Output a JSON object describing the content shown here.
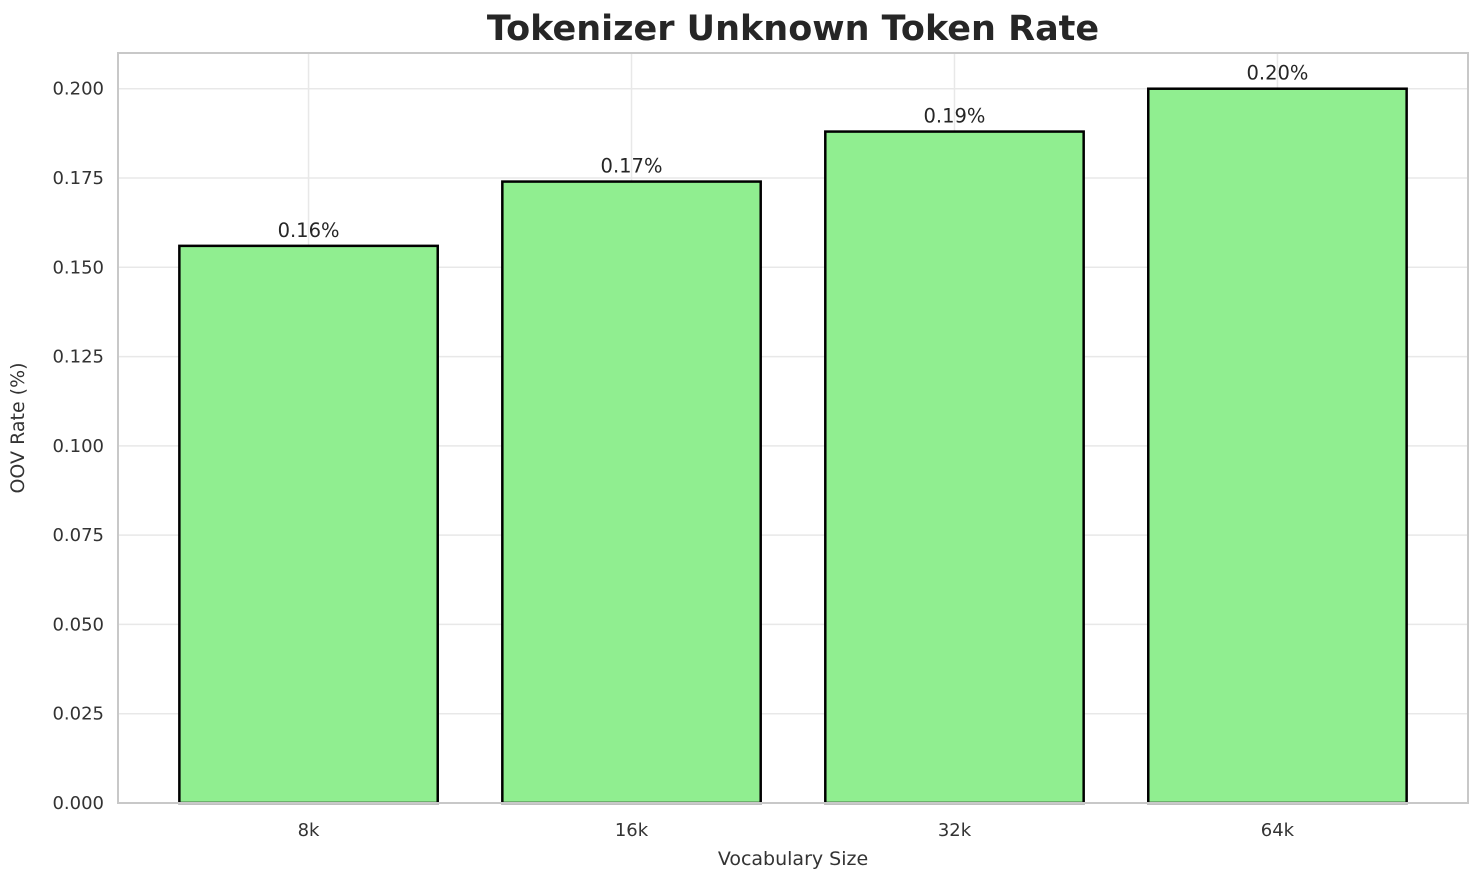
{
  "chart_data": {
    "type": "bar",
    "title": "Tokenizer Unknown Token Rate",
    "xlabel": "Vocabulary Size",
    "ylabel": "OOV Rate (%)",
    "categories": [
      "8k",
      "16k",
      "32k",
      "64k"
    ],
    "values": [
      0.156,
      0.174,
      0.188,
      0.2
    ],
    "value_labels": [
      "0.16%",
      "0.17%",
      "0.19%",
      "0.20%"
    ],
    "yticks": [
      "0.000",
      "0.025",
      "0.050",
      "0.075",
      "0.100",
      "0.125",
      "0.150",
      "0.175",
      "0.200"
    ],
    "ylim": [
      0,
      0.21
    ],
    "xlim": [
      -0.59,
      3.59
    ],
    "bar_width": 0.8,
    "grid": true,
    "legend": "none",
    "colors": {
      "bar_fill": "#90EE90",
      "bar_edge": "#000000",
      "grid_line": "#e8e8e8",
      "spine": "#c8c8c8",
      "title_text": "#262626",
      "tick_text": "#333333",
      "label_text": "#262626",
      "background": "#ffffff"
    }
  }
}
